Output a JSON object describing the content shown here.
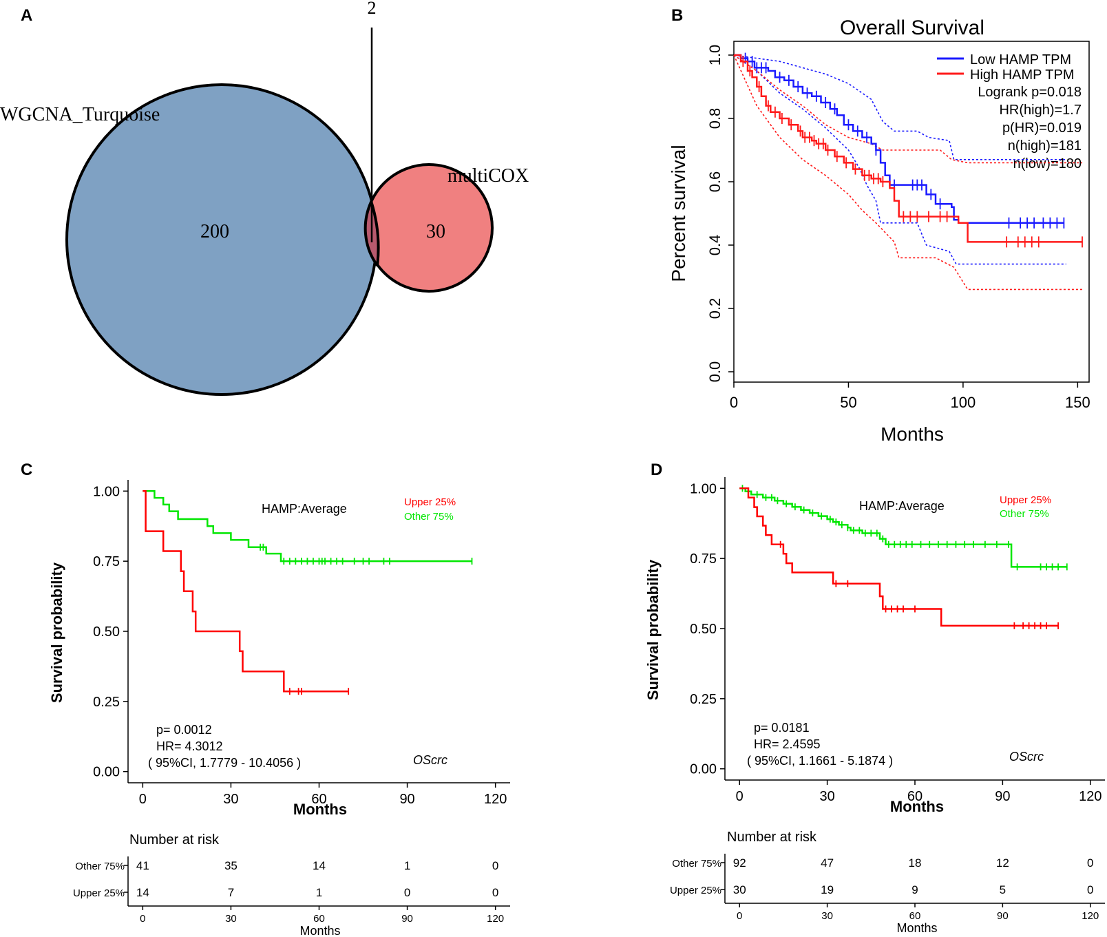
{
  "panels": {
    "a": "A",
    "b": "B",
    "c": "C",
    "d": "D"
  },
  "chart_data": [
    {
      "panel": "A",
      "type": "venn",
      "sets": [
        {
          "name": "WGCNA_Turquoise",
          "only": 200,
          "color": "#7fa1c3"
        },
        {
          "name": "multiCOX",
          "only": 30,
          "color": "#f08080"
        }
      ],
      "intersection": 2,
      "overlap_color": "#b85a6e"
    },
    {
      "panel": "B",
      "type": "line",
      "title": "Overall Survival",
      "xlabel": "Months",
      "ylabel": "Percent survival",
      "xlim": [
        0,
        155
      ],
      "ylim": [
        0,
        1.0
      ],
      "xticks": [
        0,
        50,
        100,
        150
      ],
      "yticks": [
        0.0,
        0.2,
        0.4,
        0.6,
        0.8,
        1.0
      ],
      "legend": {
        "items": [
          {
            "label": "Low HAMP TPM",
            "color": "#1a1aff"
          },
          {
            "label": "High HAMP TPM",
            "color": "#ff1a1a"
          }
        ],
        "stats": [
          "Logrank p=0.018",
          "HR(high)=1.7",
          "p(HR)=0.019",
          "n(high)=181",
          "n(low)=180"
        ]
      },
      "series": [
        {
          "name": "Low HAMP TPM",
          "color": "#1a1aff",
          "steps": [
            [
              0,
              1.0
            ],
            [
              3,
              0.99
            ],
            [
              6,
              0.98
            ],
            [
              9,
              0.96
            ],
            [
              15,
              0.95
            ],
            [
              18,
              0.93
            ],
            [
              22,
              0.92
            ],
            [
              26,
              0.9
            ],
            [
              30,
              0.88
            ],
            [
              34,
              0.87
            ],
            [
              38,
              0.85
            ],
            [
              42,
              0.83
            ],
            [
              45,
              0.81
            ],
            [
              48,
              0.78
            ],
            [
              52,
              0.76
            ],
            [
              56,
              0.74
            ],
            [
              60,
              0.72
            ],
            [
              62,
              0.7
            ],
            [
              64,
              0.66
            ],
            [
              66,
              0.62
            ],
            [
              68,
              0.59
            ],
            [
              78,
              0.59
            ],
            [
              84,
              0.56
            ],
            [
              88,
              0.53
            ],
            [
              95,
              0.52
            ],
            [
              96,
              0.48
            ],
            [
              98,
              0.47
            ],
            [
              144,
              0.47
            ]
          ],
          "censor_x": [
            5,
            8,
            10,
            12,
            14,
            20,
            24,
            28,
            32,
            36,
            40,
            44,
            50,
            54,
            58,
            62,
            70,
            78,
            80,
            82,
            86,
            90,
            120,
            125,
            128,
            131,
            135,
            138,
            141,
            144
          ],
          "upper": [
            [
              0,
              1.0
            ],
            [
              10,
              0.99
            ],
            [
              20,
              0.98
            ],
            [
              30,
              0.96
            ],
            [
              40,
              0.94
            ],
            [
              50,
              0.91
            ],
            [
              60,
              0.86
            ],
            [
              65,
              0.79
            ],
            [
              70,
              0.76
            ],
            [
              80,
              0.76
            ],
            [
              85,
              0.74
            ],
            [
              94,
              0.73
            ],
            [
              96,
              0.67
            ],
            [
              145,
              0.67
            ]
          ],
          "lower": [
            [
              0,
              1.0
            ],
            [
              10,
              0.95
            ],
            [
              20,
              0.88
            ],
            [
              30,
              0.83
            ],
            [
              40,
              0.77
            ],
            [
              50,
              0.7
            ],
            [
              55,
              0.64
            ],
            [
              58,
              0.59
            ],
            [
              62,
              0.54
            ],
            [
              64,
              0.47
            ],
            [
              80,
              0.47
            ],
            [
              84,
              0.4
            ],
            [
              94,
              0.38
            ],
            [
              97,
              0.34
            ],
            [
              145,
              0.34
            ]
          ]
        },
        {
          "name": "High HAMP TPM",
          "color": "#ff1a1a",
          "steps": [
            [
              0,
              1.0
            ],
            [
              3,
              0.98
            ],
            [
              6,
              0.95
            ],
            [
              8,
              0.93
            ],
            [
              10,
              0.9
            ],
            [
              12,
              0.87
            ],
            [
              14,
              0.84
            ],
            [
              16,
              0.82
            ],
            [
              20,
              0.8
            ],
            [
              24,
              0.78
            ],
            [
              28,
              0.76
            ],
            [
              30,
              0.74
            ],
            [
              34,
              0.73
            ],
            [
              36,
              0.72
            ],
            [
              40,
              0.7
            ],
            [
              44,
              0.68
            ],
            [
              48,
              0.66
            ],
            [
              52,
              0.64
            ],
            [
              56,
              0.62
            ],
            [
              60,
              0.61
            ],
            [
              64,
              0.6
            ],
            [
              68,
              0.58
            ],
            [
              70,
              0.54
            ],
            [
              72,
              0.49
            ],
            [
              96,
              0.49
            ],
            [
              98,
              0.47
            ],
            [
              102,
              0.41
            ],
            [
              152,
              0.41
            ]
          ],
          "censor_x": [
            4,
            7,
            11,
            15,
            18,
            21,
            25,
            29,
            31,
            33,
            35,
            37,
            39,
            41,
            45,
            49,
            53,
            57,
            59,
            61,
            63,
            65,
            74,
            77,
            80,
            85,
            90,
            93,
            119,
            124,
            127,
            130,
            133,
            152
          ],
          "upper": [
            [
              0,
              1.0
            ],
            [
              10,
              0.95
            ],
            [
              20,
              0.89
            ],
            [
              30,
              0.84
            ],
            [
              40,
              0.78
            ],
            [
              50,
              0.74
            ],
            [
              60,
              0.72
            ],
            [
              65,
              0.7
            ],
            [
              70,
              0.7
            ],
            [
              90,
              0.7
            ],
            [
              95,
              0.67
            ],
            [
              102,
              0.66
            ],
            [
              152,
              0.66
            ]
          ],
          "lower": [
            [
              0,
              1.0
            ],
            [
              10,
              0.84
            ],
            [
              20,
              0.74
            ],
            [
              30,
              0.67
            ],
            [
              40,
              0.62
            ],
            [
              50,
              0.56
            ],
            [
              56,
              0.51
            ],
            [
              62,
              0.47
            ],
            [
              70,
              0.41
            ],
            [
              72,
              0.36
            ],
            [
              88,
              0.36
            ],
            [
              96,
              0.33
            ],
            [
              102,
              0.26
            ],
            [
              152,
              0.26
            ]
          ]
        }
      ]
    },
    {
      "panel": "C",
      "type": "line",
      "xlabel": "Months",
      "ylabel": "Survival probability",
      "xlim": [
        -5,
        125
      ],
      "ylim": [
        -0.04,
        1.04
      ],
      "xticks": [
        0,
        30,
        60,
        90,
        120
      ],
      "yticks": [
        0.0,
        0.25,
        0.5,
        0.75,
        1.0
      ],
      "ytick_labels": [
        "0.00",
        "0.25",
        "0.50",
        "0.75",
        "1.00"
      ],
      "annotation": "HAMP:Average",
      "cohort": "OScrc",
      "stats": [
        "p= 0.0012",
        "HR= 4.3012",
        "( 95%CI, 1.7779 - 10.4056 )"
      ],
      "legend": [
        {
          "label": "Upper 25%",
          "color": "#ff0000"
        },
        {
          "label": "Other  75%",
          "color": "#00e600"
        }
      ],
      "series": [
        {
          "name": "Other 75%",
          "color": "#00e600",
          "steps": [
            [
              0,
              1.0
            ],
            [
              4,
              0.976
            ],
            [
              7,
              0.952
            ],
            [
              9,
              0.928
            ],
            [
              12,
              0.9
            ],
            [
              22,
              0.875
            ],
            [
              24,
              0.85
            ],
            [
              30,
              0.826
            ],
            [
              36,
              0.8
            ],
            [
              42,
              0.777
            ],
            [
              47,
              0.75
            ],
            [
              112,
              0.75
            ]
          ],
          "censor_x": [
            40,
            41,
            48,
            50,
            52,
            54,
            56,
            58,
            60,
            61,
            62,
            64,
            66,
            68,
            72,
            75,
            77,
            82,
            84,
            112
          ]
        },
        {
          "name": "Upper 25%",
          "color": "#ff0000",
          "steps": [
            [
              0,
              1.0
            ],
            [
              1,
              0.857
            ],
            [
              7,
              0.786
            ],
            [
              13,
              0.714
            ],
            [
              14,
              0.643
            ],
            [
              17,
              0.571
            ],
            [
              18,
              0.5
            ],
            [
              33,
              0.429
            ],
            [
              34,
              0.357
            ],
            [
              48,
              0.286
            ],
            [
              70,
              0.286
            ]
          ],
          "censor_x": [
            50,
            53,
            54,
            70
          ]
        }
      ],
      "risk_table": {
        "title": "Number at risk",
        "xlabel": "Months",
        "times": [
          0,
          30,
          60,
          90,
          120
        ],
        "rows": [
          {
            "label": "Other  75%",
            "values": [
              41,
              35,
              14,
              1,
              0
            ]
          },
          {
            "label": "Upper 25%",
            "values": [
              14,
              7,
              1,
              0,
              0
            ]
          }
        ]
      }
    },
    {
      "panel": "D",
      "type": "line",
      "xlabel": "Months",
      "ylabel": "Survival probability",
      "xlim": [
        -5,
        125
      ],
      "ylim": [
        -0.04,
        1.04
      ],
      "xticks": [
        0,
        30,
        60,
        90,
        120
      ],
      "yticks": [
        0.0,
        0.25,
        0.5,
        0.75,
        1.0
      ],
      "ytick_labels": [
        "0.00",
        "0.25",
        "0.50",
        "0.75",
        "1.00"
      ],
      "annotation": "HAMP:Average",
      "cohort": "OScrc",
      "stats": [
        "p= 0.0181",
        "HR= 2.4595",
        "( 95%CI, 1.1661 - 5.1874 )"
      ],
      "legend": [
        {
          "label": "Upper 25%",
          "color": "#ff0000"
        },
        {
          "label": "Other  75%",
          "color": "#00e600"
        }
      ],
      "series": [
        {
          "name": "Other 75%",
          "color": "#00e600",
          "steps": [
            [
              0,
              1.0
            ],
            [
              2,
              0.989
            ],
            [
              4,
              0.978
            ],
            [
              8,
              0.967
            ],
            [
              12,
              0.956
            ],
            [
              15,
              0.945
            ],
            [
              18,
              0.934
            ],
            [
              21,
              0.923
            ],
            [
              24,
              0.912
            ],
            [
              27,
              0.901
            ],
            [
              30,
              0.89
            ],
            [
              32,
              0.88
            ],
            [
              34,
              0.87
            ],
            [
              37,
              0.86
            ],
            [
              38,
              0.85
            ],
            [
              42,
              0.84
            ],
            [
              48,
              0.82
            ],
            [
              50,
              0.8
            ],
            [
              92,
              0.8
            ],
            [
              93,
              0.72
            ],
            [
              112,
              0.72
            ]
          ],
          "censor_x": [
            1,
            3,
            6,
            9,
            11,
            13,
            16,
            19,
            22,
            25,
            28,
            31,
            33,
            35,
            37,
            39,
            41,
            43,
            45,
            47,
            49,
            51,
            53,
            55,
            57,
            59,
            62,
            65,
            68,
            71,
            74,
            77,
            80,
            84,
            88,
            92,
            95,
            103,
            105,
            107,
            109,
            112
          ]
        },
        {
          "name": "Upper 25%",
          "color": "#ff0000",
          "steps": [
            [
              0,
              1.0
            ],
            [
              3,
              0.967
            ],
            [
              5,
              0.933
            ],
            [
              6,
              0.9
            ],
            [
              8,
              0.867
            ],
            [
              9,
              0.833
            ],
            [
              11,
              0.8
            ],
            [
              15,
              0.767
            ],
            [
              16,
              0.733
            ],
            [
              18,
              0.7
            ],
            [
              32,
              0.66
            ],
            [
              48,
              0.615
            ],
            [
              49,
              0.57
            ],
            [
              69,
              0.51
            ],
            [
              109,
              0.51
            ]
          ],
          "censor_x": [
            14,
            33,
            37,
            50,
            52,
            54,
            56,
            60,
            94,
            97,
            99,
            101,
            103,
            105,
            109
          ]
        }
      ],
      "risk_table": {
        "title": "Number at risk",
        "xlabel": "Months",
        "times": [
          0,
          30,
          60,
          90,
          120
        ],
        "rows": [
          {
            "label": "Other  75%",
            "values": [
              92,
              47,
              18,
              12,
              0
            ]
          },
          {
            "label": "Upper 25%",
            "values": [
              30,
              19,
              9,
              5,
              0
            ]
          }
        ]
      }
    }
  ]
}
